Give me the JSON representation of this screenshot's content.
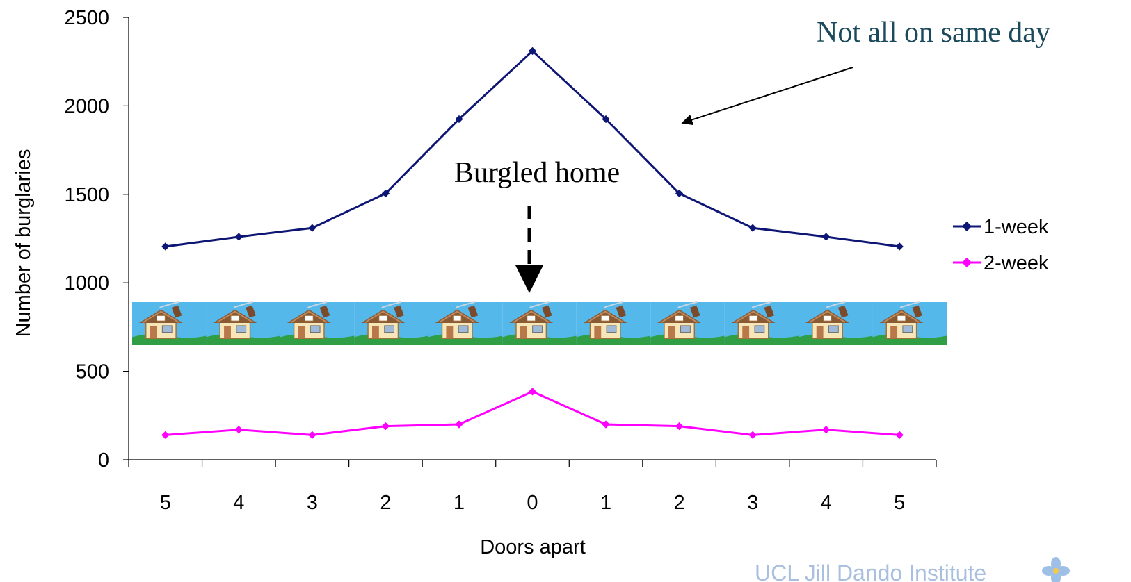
{
  "chart_data": {
    "type": "line",
    "categories": [
      "5",
      "4",
      "3",
      "2",
      "1",
      "0",
      "1",
      "2",
      "3",
      "4",
      "5"
    ],
    "series": [
      {
        "name": "1-week",
        "color": "#0d1674",
        "values": [
          1205,
          1260,
          1310,
          1505,
          1925,
          2310,
          1925,
          1505,
          1310,
          1260,
          1205
        ]
      },
      {
        "name": "2-week",
        "color": "#ff00ff",
        "values": [
          140,
          170,
          140,
          190,
          200,
          385,
          200,
          190,
          140,
          170,
          140
        ]
      }
    ],
    "xlabel": "Doors apart",
    "ylabel": "Number of burglaries",
    "ylim": [
      0,
      2500
    ],
    "yticks": [
      "0",
      "500",
      "1000",
      "1500",
      "2000",
      "2500"
    ],
    "grid": false,
    "legend_position": "right",
    "annotations": {
      "burgled_home": "Burgled home",
      "not_same_day": "Not all on same day"
    },
    "house_count": 11
  },
  "logo": {
    "text": "UCL Jill Dando Institute"
  }
}
